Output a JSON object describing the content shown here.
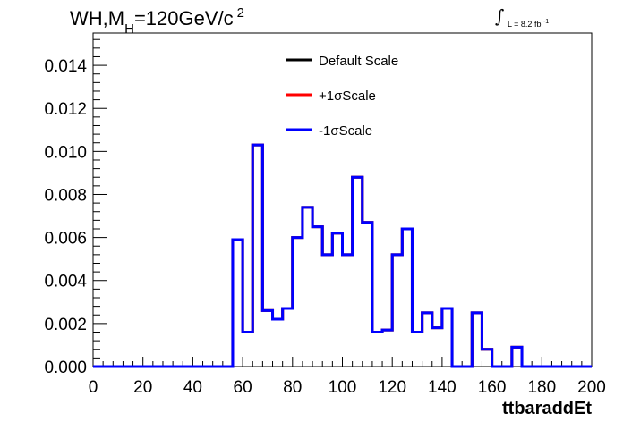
{
  "header": {
    "title_main": "WH,M",
    "title_sub": "H",
    "title_rest": "=120GeV/c",
    "title_sup": "2",
    "lumi_label": "L = 8.2 fb",
    "lumi_sup": "-1"
  },
  "chart_data": {
    "type": "line",
    "title": "",
    "xlabel": "ttbaraddEt",
    "ylabel": "",
    "xlim": [
      0,
      200
    ],
    "ylim": [
      0,
      0.0155
    ],
    "x_ticks": [
      0,
      20,
      40,
      60,
      80,
      100,
      120,
      140,
      160,
      180,
      200
    ],
    "x_tick_labels": [
      "0",
      "20",
      "40",
      "60",
      "80",
      "100",
      "120",
      "140",
      "160",
      "180",
      "200"
    ],
    "y_ticks": [
      0,
      0.002,
      0.004,
      0.006,
      0.008,
      0.01,
      0.012,
      0.014
    ],
    "y_tick_labels": [
      "0.000",
      "0.002",
      "0.004",
      "0.006",
      "0.008",
      "0.010",
      "0.012",
      "0.014"
    ],
    "grid": false,
    "legend_position": "top-center",
    "bin_edges": [
      0,
      4,
      8,
      12,
      16,
      20,
      24,
      28,
      32,
      36,
      40,
      44,
      48,
      52,
      56,
      60,
      64,
      68,
      72,
      76,
      80,
      84,
      88,
      92,
      96,
      100,
      104,
      108,
      112,
      116,
      120,
      124,
      128,
      132,
      136,
      140,
      144,
      148,
      152,
      156,
      160,
      164,
      168,
      172,
      176,
      180,
      184,
      188,
      192,
      196,
      200
    ],
    "series": [
      {
        "name": "Default Scale",
        "color": "#000000",
        "values": [
          0,
          0,
          0,
          0,
          0,
          0,
          0,
          0,
          0,
          0,
          0,
          0,
          0,
          0,
          0.0059,
          0.0016,
          0.0103,
          0.0026,
          0.0022,
          0.0027,
          0.006,
          0.0074,
          0.0065,
          0.0052,
          0.0062,
          0.0052,
          0.0088,
          0.0067,
          0.0016,
          0.0017,
          0.0052,
          0.0064,
          0.0016,
          0.0025,
          0.0018,
          0.0027,
          0,
          0,
          0.0025,
          0.0008,
          0,
          0,
          0.0009,
          0,
          0,
          0,
          0,
          0,
          0,
          0
        ]
      },
      {
        "name": "+1σScale",
        "color": "#ff0000",
        "values": [
          0,
          0,
          0,
          0,
          0,
          0,
          0,
          0,
          0,
          0,
          0,
          0,
          0,
          0,
          0.0059,
          0.0016,
          0.0103,
          0.0026,
          0.0022,
          0.0027,
          0.006,
          0.0074,
          0.0065,
          0.0052,
          0.0062,
          0.0052,
          0.0088,
          0.0067,
          0.0016,
          0.0017,
          0.0052,
          0.0064,
          0.0016,
          0.0025,
          0.0018,
          0.0027,
          0,
          0,
          0.0025,
          0.0008,
          0,
          0,
          0.0009,
          0,
          0,
          0,
          0,
          0,
          0,
          0
        ]
      },
      {
        "name": "-1σScale",
        "color": "#0000ff",
        "values": [
          0,
          0,
          0,
          0,
          0,
          0,
          0,
          0,
          0,
          0,
          0,
          0,
          0,
          0,
          0.0059,
          0.0016,
          0.0103,
          0.0026,
          0.0022,
          0.0027,
          0.006,
          0.0074,
          0.0065,
          0.0052,
          0.0062,
          0.0052,
          0.0088,
          0.0067,
          0.0016,
          0.0017,
          0.0052,
          0.0064,
          0.0016,
          0.0025,
          0.0018,
          0.0027,
          0,
          0,
          0.0025,
          0.0008,
          0,
          0,
          0.0009,
          0,
          0,
          0,
          0,
          0,
          0,
          0
        ]
      }
    ]
  }
}
